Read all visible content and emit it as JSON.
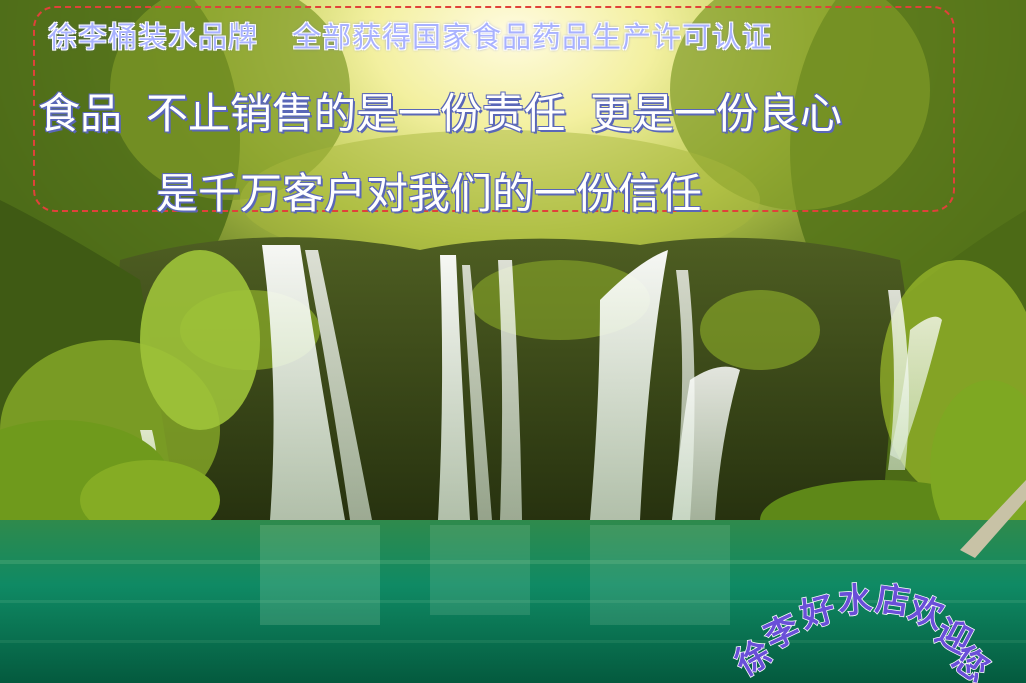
{
  "banner": {
    "line1_part1": "徐李桶装水品牌",
    "line1_part2": "全部获得国家食品药品生产许可认证",
    "line2_part1": "食品",
    "line2_part2": "不止销售的是一份责任",
    "line2_part3": "更是一份良心",
    "line3": "是千万客户对我们的一份信任",
    "border_color": "#e0413a",
    "line1_color": "#a9b2ff",
    "outline_color": "#5a67b8"
  },
  "welcome": {
    "chars": [
      "徐",
      "李",
      "好",
      "水",
      "店",
      "欢",
      "迎",
      "您"
    ],
    "color": "#6a4fd8"
  },
  "scene": {
    "subject": "forest-waterfall-lake-photo"
  }
}
